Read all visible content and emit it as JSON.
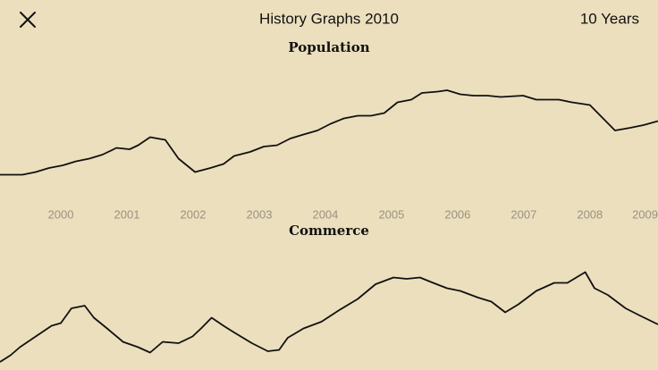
{
  "header": {
    "title": "History Graphs 2010",
    "range": "10 Years"
  },
  "chart_data": [
    {
      "type": "line",
      "title": "Population",
      "color": "#111111",
      "x": [
        1999.08,
        1999.42,
        1999.62,
        1999.82,
        2000.03,
        2000.23,
        2000.43,
        2000.63,
        2000.84,
        2001.04,
        2001.17,
        2001.35,
        2001.58,
        2001.78,
        2002.03,
        2002.26,
        2002.46,
        2002.62,
        2002.86,
        2003.07,
        2003.27,
        2003.47,
        2003.67,
        2003.88,
        2004.08,
        2004.28,
        2004.49,
        2004.69,
        2004.89,
        2005.09,
        2005.3,
        2005.46,
        2005.7,
        2005.84,
        2006.04,
        2006.24,
        2006.45,
        2006.65,
        2006.99,
        2007.19,
        2007.35,
        2007.53,
        2007.73,
        2008.0,
        2008.2,
        2008.38,
        2008.61,
        2008.81,
        2009.03
      ],
      "values": [
        23,
        23,
        25,
        28,
        30,
        33,
        35,
        38,
        43,
        42,
        45,
        51,
        49,
        35,
        25,
        28,
        31,
        37,
        40,
        44,
        45,
        50,
        53,
        56,
        61,
        65,
        67,
        67,
        69,
        77,
        79,
        84,
        85,
        86,
        83,
        82,
        82,
        81,
        82,
        79,
        79,
        79,
        77,
        75,
        65,
        56,
        58,
        60,
        63
      ],
      "xlim": [
        1999.08,
        2009.03
      ],
      "ylim": [
        0,
        100
      ],
      "xticks": [
        2000,
        2001,
        2002,
        2003,
        2004,
        2005,
        2006,
        2007,
        2008,
        2009
      ]
    },
    {
      "type": "line",
      "title": "Commerce",
      "color": "#111111",
      "x": [
        1999.08,
        1999.24,
        1999.38,
        1999.62,
        1999.86,
        2000.0,
        2000.16,
        2000.36,
        2000.5,
        2000.7,
        2000.94,
        2001.17,
        2001.35,
        2001.54,
        2001.78,
        2001.99,
        2002.12,
        2002.28,
        2002.46,
        2002.62,
        2002.89,
        2003.13,
        2003.3,
        2003.43,
        2003.67,
        2003.94,
        2004.22,
        2004.49,
        2004.76,
        2005.03,
        2005.23,
        2005.43,
        2005.63,
        2005.84,
        2006.04,
        2006.31,
        2006.51,
        2006.72,
        2006.92,
        2007.19,
        2007.46,
        2007.66,
        2007.93,
        2008.07,
        2008.27,
        2008.54,
        2008.74,
        2009.03
      ],
      "values": [
        6,
        11,
        17,
        25,
        33,
        35,
        46,
        48,
        39,
        31,
        21,
        17,
        13,
        21,
        20,
        25,
        31,
        39,
        33,
        28,
        20,
        14,
        15,
        24,
        31,
        36,
        45,
        53,
        64,
        69,
        68,
        69,
        65,
        61,
        59,
        54,
        51,
        43,
        49,
        59,
        65,
        65,
        73,
        61,
        56,
        46,
        41,
        34
      ],
      "xlim": [
        1999.08,
        2009.03
      ],
      "ylim": [
        0,
        100
      ]
    }
  ]
}
